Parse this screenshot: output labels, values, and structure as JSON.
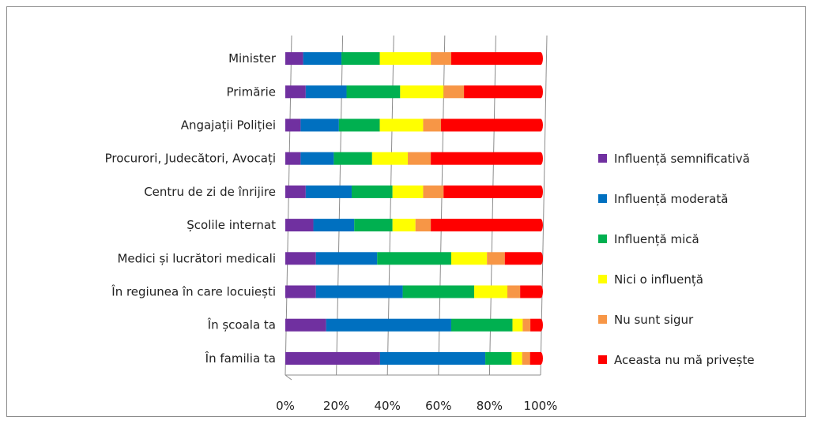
{
  "chart_data": {
    "type": "bar",
    "orientation": "horizontal",
    "stacked": "percent",
    "categories": [
      "Minister",
      "Primărie",
      "Angajații Poliției",
      "Procurori, Judecători, Avocați",
      "Centru de zi de înrijire",
      "Școlile internat",
      "Medici și lucrători medicali",
      "În regiunea în care locuiești",
      "În școala ta",
      "În familia ta"
    ],
    "series": [
      {
        "name": "Influență semnificativă",
        "color": "#7030A0",
        "values": [
          7,
          8,
          6,
          6,
          8,
          11,
          12,
          12,
          16,
          36
        ]
      },
      {
        "name": "Influență moderată",
        "color": "#0070C0",
        "values": [
          15,
          16,
          15,
          13,
          18,
          16,
          24,
          34,
          49,
          40
        ]
      },
      {
        "name": "Influență mică",
        "color": "#00B050",
        "values": [
          15,
          21,
          16,
          15,
          16,
          15,
          29,
          28,
          24,
          10
        ]
      },
      {
        "name": "Nici o influență",
        "color": "#FFFF00",
        "values": [
          20,
          17,
          17,
          14,
          12,
          9,
          14,
          13,
          4,
          4
        ]
      },
      {
        "name": "Nu sunt sigur",
        "color": "#F79646",
        "values": [
          8,
          8,
          7,
          9,
          8,
          6,
          7,
          5,
          3,
          3
        ]
      },
      {
        "name": "Aceasta nu mă privește",
        "color": "#FF0000",
        "values": [
          35,
          30,
          39,
          43,
          38,
          43,
          14,
          8,
          4,
          4
        ]
      }
    ],
    "x_ticks": [
      "0%",
      "20%",
      "40%",
      "60%",
      "80%",
      "100%"
    ],
    "xlim": [
      0,
      100
    ],
    "grid": true,
    "legend_position": "right"
  }
}
